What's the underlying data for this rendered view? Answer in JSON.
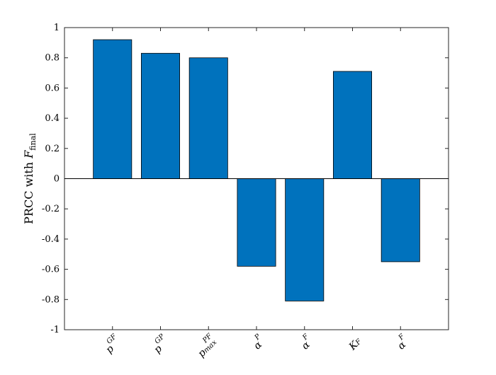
{
  "chart_data": {
    "type": "bar",
    "categories": [
      "p^{GF}",
      "p^{GP}",
      "p^{PF}_{max}",
      "α^{P}",
      "α^{F}",
      "K_{F}",
      "α^{F}"
    ],
    "category_parts": [
      {
        "base": "p",
        "sup": "GF",
        "sub": ""
      },
      {
        "base": "p",
        "sup": "GP",
        "sub": ""
      },
      {
        "base": "p",
        "sup": "PF",
        "sub": "max"
      },
      {
        "base": "α",
        "sup": "P",
        "sub": ""
      },
      {
        "base": "α",
        "sup": "F",
        "sub": ""
      },
      {
        "base": "K",
        "sup": "",
        "sub": "F"
      },
      {
        "base": "α",
        "sup": "F",
        "sub": ""
      }
    ],
    "values": [
      0.92,
      0.83,
      0.8,
      -0.58,
      -0.81,
      0.71,
      -0.55
    ],
    "title": "",
    "xlabel": "",
    "ylabel": "PRCC with F_final",
    "ylabel_parts": {
      "text": "PRCC with ",
      "var": "F",
      "sub": "final"
    },
    "ylim": [
      -1,
      1
    ],
    "yticks": [
      "-1",
      "-0.8",
      "-0.6",
      "-0.4",
      "-0.2",
      "0",
      "0.2",
      "0.4",
      "0.6",
      "0.8",
      "1"
    ],
    "grid": false,
    "bar_color": "#0072bd"
  }
}
